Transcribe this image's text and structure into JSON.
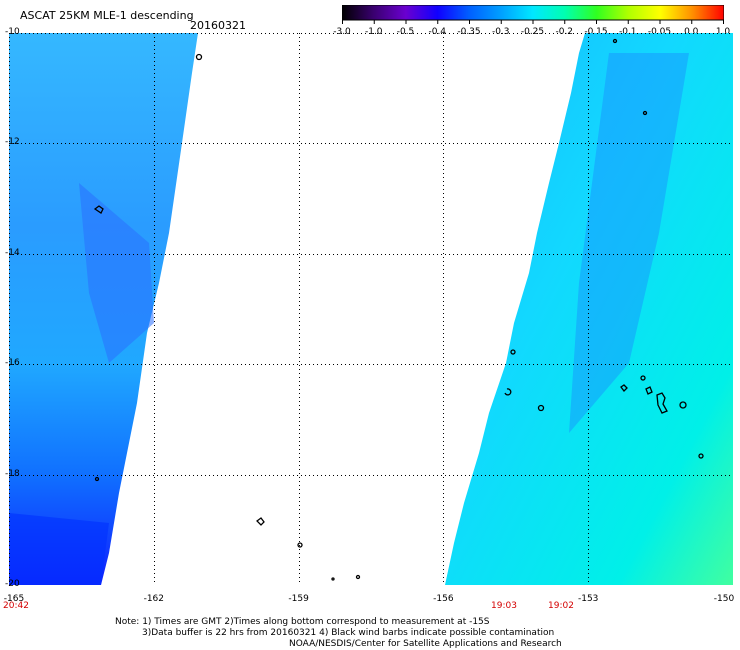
{
  "header": {
    "title": "ASCAT 25KM MLE-1 descending",
    "date": "20160321"
  },
  "colorbar": {
    "labels": [
      "-3.0",
      "-1.0",
      "-0.5",
      "-0.4",
      "-0.35",
      "-0.3",
      "-0.25",
      "-0.2",
      "-0.15",
      "-0.1",
      "-0.05",
      "0.0",
      "1.0"
    ],
    "colors": [
      "#000000",
      "#3a0070",
      "#6a00d0",
      "#1000ff",
      "#0060ff",
      "#00a0ff",
      "#00e8ff",
      "#00ffb0",
      "#30ff20",
      "#b0ff00",
      "#ffff00",
      "#ff9000",
      "#ff0000"
    ]
  },
  "axes": {
    "y_labels": [
      "-10",
      "-12",
      "-14",
      "-16",
      "-18",
      "-20"
    ],
    "x_labels": [
      "-165",
      "-162",
      "-159",
      "-156",
      "-153",
      "-150"
    ]
  },
  "times": [
    "20:42",
    "19:03",
    "19:02"
  ],
  "notes": {
    "line1": "Note: 1) Times are GMT 2)Times along bottom correspond to measurement at -15S",
    "line2": "3)Data buffer is 22 hrs from 20160321 4) Black wind barbs indicate possible contamination",
    "line3": "NOAA/NESDIS/Center for Satellite Applications and Research"
  }
}
